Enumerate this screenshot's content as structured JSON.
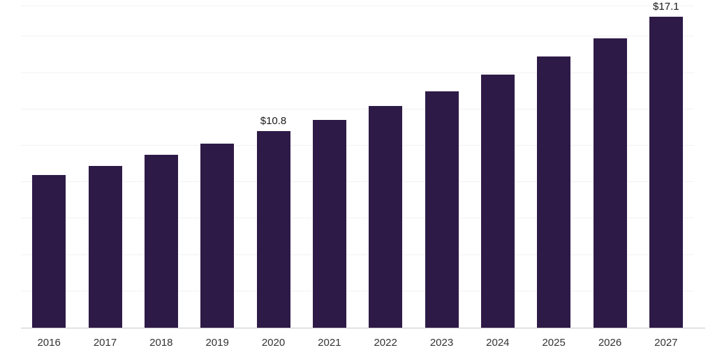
{
  "chart_data": {
    "type": "bar",
    "title": "",
    "xlabel": "",
    "ylabel": "",
    "categories": [
      "2016",
      "2017",
      "2018",
      "2019",
      "2020",
      "2021",
      "2022",
      "2023",
      "2024",
      "2025",
      "2026",
      "2027"
    ],
    "values": [
      8.4,
      8.9,
      9.5,
      10.1,
      10.8,
      11.4,
      12.2,
      13.0,
      13.9,
      14.9,
      15.9,
      17.1
    ],
    "data_labels": [
      {
        "category": "2020",
        "index": 4,
        "text": "$10.8"
      },
      {
        "category": "2027",
        "index": 11,
        "text": "$17.1"
      }
    ],
    "ylim": [
      0,
      17.7
    ],
    "gridline_step": 2,
    "grid": true,
    "legend_position": "none",
    "bar_color": "#2e1a47",
    "gridline_color": "#f2f2f2",
    "axis_line_color": "#c9c9c9",
    "label_color": "#333333",
    "data_label_color": "#1a1a1a"
  }
}
